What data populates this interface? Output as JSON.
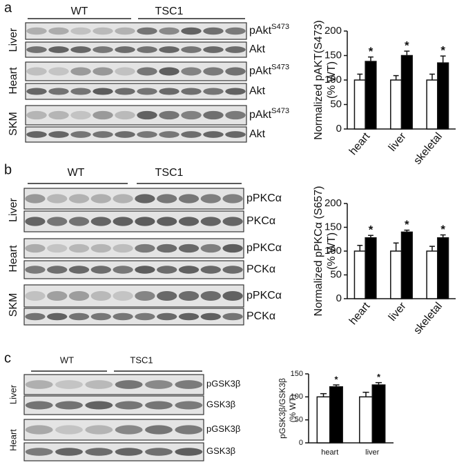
{
  "panels": [
    {
      "letter": "a",
      "groups": [
        "WT",
        "TSC1"
      ],
      "tissues": [
        {
          "name": "Liver",
          "bands": [
            {
              "text": "pAkt",
              "sup": "S473"
            },
            {
              "text": "Akt"
            }
          ]
        },
        {
          "name": "Heart",
          "bands": [
            {
              "text": "pAkt",
              "sup": "S473"
            },
            {
              "text": "Akt"
            }
          ]
        },
        {
          "name": "SKM",
          "bands": [
            {
              "text": "pAkt",
              "sup": "S473"
            },
            {
              "text": "Akt"
            }
          ]
        }
      ]
    },
    {
      "letter": "b",
      "groups": [
        "WT",
        "TSC1"
      ],
      "tissues": [
        {
          "name": "Liver",
          "bands": [
            {
              "text": "pPKCα"
            },
            {
              "text": "PKCα"
            }
          ]
        },
        {
          "name": "Heart",
          "bands": [
            {
              "text": "pPKCα"
            },
            {
              "text": "PCKα"
            }
          ]
        },
        {
          "name": "SKM",
          "bands": [
            {
              "text": "pPKCα"
            },
            {
              "text": "PCKα"
            }
          ]
        }
      ]
    },
    {
      "letter": "c",
      "groups": [
        "WT",
        "TSC1"
      ],
      "tissues": [
        {
          "name": "Liver",
          "bands": [
            {
              "text": "pGSK3β"
            },
            {
              "text": "GSK3β"
            }
          ]
        },
        {
          "name": "Heart",
          "bands": [
            {
              "text": "pGSK3β"
            },
            {
              "text": "GSK3β"
            }
          ]
        }
      ]
    }
  ],
  "chart_data": [
    {
      "type": "bar",
      "ylabel": [
        "Normalized pAKT(S473)",
        "(% WT)"
      ],
      "categories": [
        "heart",
        "liver",
        "skeletal"
      ],
      "series": [
        {
          "color": "#ffffff",
          "values": [
            100,
            100,
            100
          ],
          "errors": [
            12,
            9,
            12
          ]
        },
        {
          "color": "#000000",
          "values": [
            138,
            150,
            135
          ],
          "errors": [
            9,
            9,
            14
          ],
          "annotations": [
            "*",
            "*",
            "*"
          ]
        }
      ],
      "ylim": [
        0,
        200
      ],
      "yticks": [
        0,
        50,
        100,
        150,
        200
      ]
    },
    {
      "type": "bar",
      "ylabel": [
        "Normalized pPKCα (S657)",
        "(% WT)"
      ],
      "categories": [
        "heart",
        "liver",
        "skeletal"
      ],
      "series": [
        {
          "color": "#ffffff",
          "values": [
            100,
            100,
            100
          ],
          "errors": [
            12,
            17,
            10
          ]
        },
        {
          "color": "#000000",
          "values": [
            128,
            140,
            128
          ],
          "errors": [
            5,
            4,
            6
          ],
          "annotations": [
            "*",
            "*",
            "*"
          ]
        }
      ],
      "ylim": [
        0,
        200
      ],
      "yticks": [
        0,
        50,
        100,
        150,
        200
      ]
    },
    {
      "type": "bar",
      "ylabel": [
        "pGSK3β/GSK3β",
        "(% WT)"
      ],
      "categories": [
        "heart",
        "liver"
      ],
      "series": [
        {
          "color": "#ffffff",
          "values": [
            100,
            100
          ],
          "errors": [
            7,
            10
          ]
        },
        {
          "color": "#000000",
          "values": [
            122,
            126
          ],
          "errors": [
            4,
            5
          ],
          "annotations": [
            "*",
            "*"
          ]
        }
      ],
      "ylim": [
        0,
        150
      ],
      "yticks": [
        0,
        50,
        100,
        150
      ]
    }
  ]
}
